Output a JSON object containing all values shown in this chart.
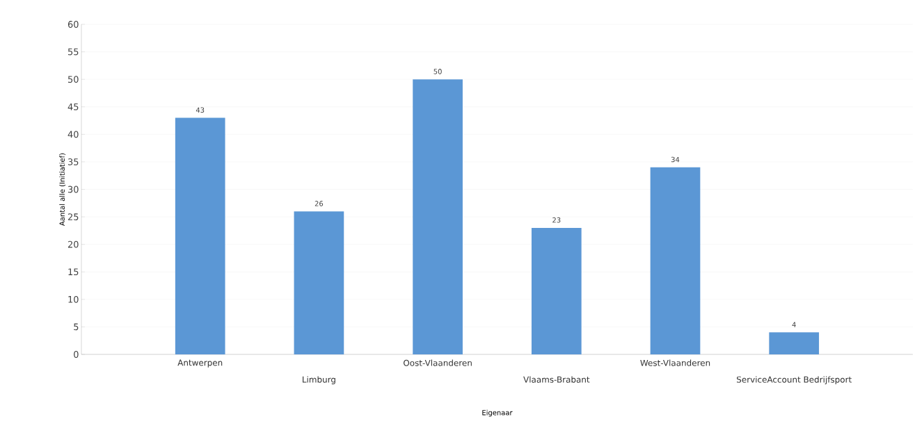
{
  "chart_data": {
    "type": "bar",
    "xlabel": "Eigenaar",
    "ylabel": "Aantal alle (Initiatief)",
    "categories": [
      "Antwerpen",
      "Limburg",
      "Oost-Vlaanderen",
      "Vlaams-Brabant",
      "West-Vlaanderen",
      "ServiceAccount Bedrijfsport"
    ],
    "values": [
      43,
      26,
      50,
      23,
      34,
      4
    ],
    "color": "#5b97d5",
    "ylim": [
      0,
      60
    ],
    "yticks": [
      0,
      5,
      10,
      15,
      20,
      25,
      30,
      35,
      40,
      45,
      50,
      55,
      60
    ],
    "grid": "y",
    "data_labels": true
  }
}
